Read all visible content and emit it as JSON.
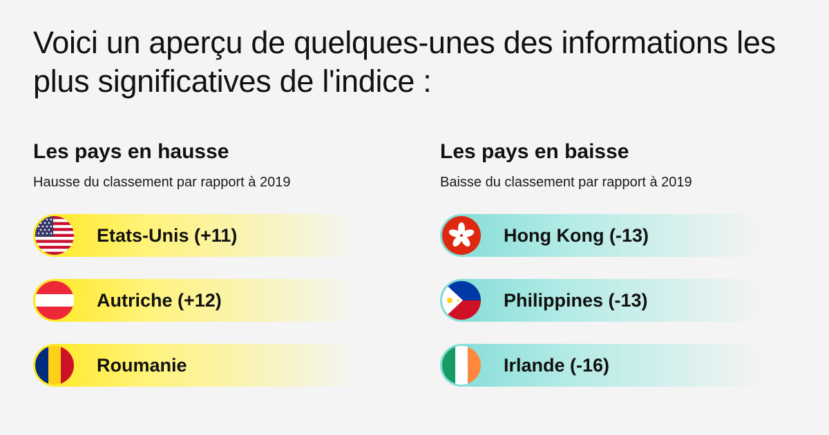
{
  "headline": "Voici un aperçu de quelques-unes des informations les plus significatives de l'indice :",
  "rising": {
    "title": "Les pays en hausse",
    "subtitle": "Hausse du classement par rapport à 2019",
    "color": "#ffe81a",
    "items": [
      {
        "label": "Etats-Unis (+11)",
        "flag": "usa-flag-icon"
      },
      {
        "label": "Autriche (+12)",
        "flag": "austria-flag-icon"
      },
      {
        "label": "Roumanie",
        "flag": "romania-flag-icon"
      }
    ]
  },
  "falling": {
    "title": "Les pays en baisse",
    "subtitle": "Baisse du classement par rapport à 2019",
    "color": "#7fdcd6",
    "items": [
      {
        "label": "Hong Kong (-13)",
        "flag": "hong-kong-flag-icon"
      },
      {
        "label": "Philippines (-13)",
        "flag": "philippines-flag-icon"
      },
      {
        "label": "Irlande (-16)",
        "flag": "ireland-flag-icon"
      }
    ]
  }
}
